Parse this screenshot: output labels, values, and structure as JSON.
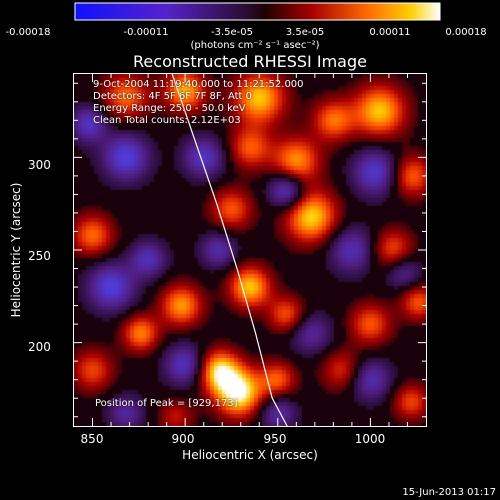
{
  "colorbar": {
    "tick_labels": [
      "-0.00018",
      "-0.00011",
      "-3.5e-05",
      "3.5e-05",
      "0.00011",
      "0.00018"
    ],
    "units": "(photons cm⁻² s⁻¹ asec⁻²)",
    "range": [
      -0.00018,
      0.00018
    ]
  },
  "plot": {
    "title": "Reconstructed RHESSI Image",
    "info_lines": [
      "9-Oct-2004 11:19:40.000 to 11:21:52.000",
      "Detectors: 4F 5F 6F 7F 8F, Att 0",
      "Energy Range: 25.0 - 50.0 keV",
      "Clean    Total counts: 2.12E+03"
    ],
    "peak_text": "Position of Peak = [929,173]"
  },
  "footer": {
    "date": "15-Jun-2013 01:17"
  },
  "chart_data": {
    "type": "heatmap",
    "title": "Reconstructed RHESSI Image",
    "xlabel": "Heliocentric X (arcsec)",
    "ylabel": "Heliocentric Y (arcsec)",
    "xlim": [
      840,
      1030
    ],
    "ylim": [
      155,
      345
    ],
    "x_ticks": [
      850,
      900,
      950,
      1000
    ],
    "y_ticks": [
      200,
      250,
      300
    ],
    "colormap": "red-temperature with blue negatives",
    "peak_position": [
      929,
      173
    ],
    "limb_curve": {
      "x": [
        893,
        905,
        917,
        928,
        938,
        947,
        955
      ],
      "y": [
        345,
        310,
        275,
        240,
        205,
        170,
        155
      ]
    },
    "sources": [
      {
        "x": 929,
        "y": 173,
        "v": 1.0,
        "r": 9
      },
      {
        "x": 918,
        "y": 185,
        "v": 0.85,
        "r": 8
      },
      {
        "x": 950,
        "y": 180,
        "v": 0.55,
        "r": 7
      },
      {
        "x": 868,
        "y": 333,
        "v": 0.6,
        "r": 9
      },
      {
        "x": 900,
        "y": 336,
        "v": 0.75,
        "r": 8
      },
      {
        "x": 940,
        "y": 332,
        "v": 0.8,
        "r": 10
      },
      {
        "x": 1005,
        "y": 325,
        "v": 0.8,
        "r": 10
      },
      {
        "x": 980,
        "y": 320,
        "v": 0.6,
        "r": 8
      },
      {
        "x": 935,
        "y": 305,
        "v": 0.55,
        "r": 8
      },
      {
        "x": 960,
        "y": 298,
        "v": 0.7,
        "r": 9
      },
      {
        "x": 1022,
        "y": 290,
        "v": 0.6,
        "r": 8
      },
      {
        "x": 968,
        "y": 268,
        "v": 0.85,
        "r": 10
      },
      {
        "x": 925,
        "y": 272,
        "v": 0.55,
        "r": 8
      },
      {
        "x": 850,
        "y": 258,
        "v": 0.6,
        "r": 8
      },
      {
        "x": 1012,
        "y": 250,
        "v": 0.55,
        "r": 8
      },
      {
        "x": 935,
        "y": 230,
        "v": 0.8,
        "r": 8
      },
      {
        "x": 898,
        "y": 220,
        "v": 0.7,
        "r": 8
      },
      {
        "x": 876,
        "y": 205,
        "v": 0.65,
        "r": 7
      },
      {
        "x": 955,
        "y": 215,
        "v": 0.55,
        "r": 7
      },
      {
        "x": 1000,
        "y": 210,
        "v": 0.55,
        "r": 8
      },
      {
        "x": 1026,
        "y": 222,
        "v": 0.55,
        "r": 7
      },
      {
        "x": 985,
        "y": 185,
        "v": 0.45,
        "r": 8
      },
      {
        "x": 1022,
        "y": 168,
        "v": 0.5,
        "r": 7
      },
      {
        "x": 850,
        "y": 185,
        "v": 0.5,
        "r": 8
      },
      {
        "x": 895,
        "y": 160,
        "v": 0.35,
        "r": 7
      },
      {
        "x": 868,
        "y": 300,
        "v": -0.7,
        "r": 9
      },
      {
        "x": 848,
        "y": 318,
        "v": -0.6,
        "r": 7
      },
      {
        "x": 910,
        "y": 300,
        "v": -0.6,
        "r": 8
      },
      {
        "x": 955,
        "y": 282,
        "v": -0.7,
        "r": 7
      },
      {
        "x": 1003,
        "y": 292,
        "v": -0.65,
        "r": 9
      },
      {
        "x": 860,
        "y": 230,
        "v": -0.7,
        "r": 9
      },
      {
        "x": 880,
        "y": 245,
        "v": -0.55,
        "r": 7
      },
      {
        "x": 990,
        "y": 250,
        "v": -0.55,
        "r": 9
      },
      {
        "x": 918,
        "y": 250,
        "v": -0.5,
        "r": 7
      },
      {
        "x": 900,
        "y": 188,
        "v": -0.6,
        "r": 8
      },
      {
        "x": 968,
        "y": 205,
        "v": -0.45,
        "r": 8
      },
      {
        "x": 950,
        "y": 162,
        "v": -0.5,
        "r": 7
      },
      {
        "x": 1000,
        "y": 180,
        "v": -0.55,
        "r": 8
      },
      {
        "x": 1018,
        "y": 238,
        "v": -0.45,
        "r": 7
      },
      {
        "x": 868,
        "y": 162,
        "v": -0.45,
        "r": 7
      }
    ]
  }
}
